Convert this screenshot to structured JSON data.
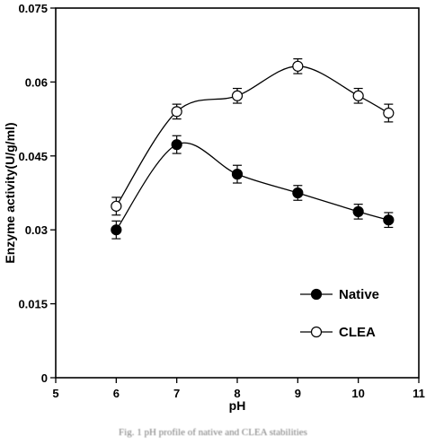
{
  "chart_data": {
    "type": "line",
    "xlabel": "pH",
    "ylabel": "Enzyme activity(U/g/ml)",
    "xlim": [
      5,
      11
    ],
    "ylim": [
      0,
      0.075
    ],
    "x_ticks": [
      "5",
      "6",
      "7",
      "8",
      "9",
      "10",
      "11"
    ],
    "y_ticks": [
      "0",
      "0.015",
      "0.03",
      "0.045",
      "0.06",
      "0.075"
    ],
    "grid": false,
    "legend_position": "bottom-right",
    "series": [
      {
        "name": "Native",
        "marker": "filled-circle",
        "color": "#000000",
        "x": [
          6,
          7,
          8,
          9,
          10,
          10.5
        ],
        "y": [
          0.03,
          0.0473,
          0.0413,
          0.0375,
          0.0337,
          0.032
        ],
        "error": [
          0.0018,
          0.0018,
          0.0018,
          0.0015,
          0.0015,
          0.0015
        ]
      },
      {
        "name": "CLEA",
        "marker": "open-circle",
        "color": "#000000",
        "x": [
          6,
          7,
          8,
          9,
          10,
          10.5
        ],
        "y": [
          0.0348,
          0.054,
          0.0572,
          0.0632,
          0.0572,
          0.0537
        ],
        "error": [
          0.0018,
          0.0015,
          0.0015,
          0.0015,
          0.0015,
          0.0018
        ]
      }
    ]
  },
  "caption": "Fig. 1 pH profile of native and CLEA stabilities"
}
